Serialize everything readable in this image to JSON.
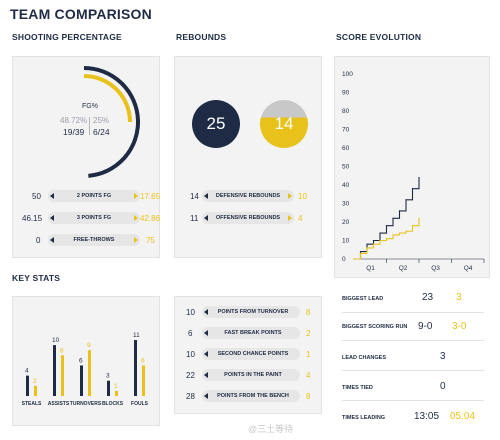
{
  "title": "TEAM COMPARISON",
  "sections": {
    "shooting": "SHOOTING PERCENTAGE",
    "rebounds": "REBOUNDS",
    "score": "SCORE EVOLUTION",
    "key": "KEY STATS"
  },
  "colors": {
    "navy": "#1f2b44",
    "gold": "#e8c21a",
    "grey": "#c8c8c8"
  },
  "shooting": {
    "fg_label": "FG%",
    "navy_pct": "48.72%",
    "gold_pct": "25%",
    "navy_made": "19/39",
    "gold_made": "6/24",
    "navy_fg_fraction": 0.4872,
    "gold_fg_fraction": 0.25,
    "rows": [
      {
        "label": "2 POINTS FG",
        "navy": "50",
        "gold": "17.65"
      },
      {
        "label": "3 POINTS FG",
        "navy": "46.15",
        "gold": "42.86"
      },
      {
        "label": "FREE-THROWS",
        "navy": "0",
        "gold": "75"
      }
    ]
  },
  "rebounds": {
    "navy_total": "25",
    "gold_total": "14",
    "rows": [
      {
        "label": "DEFENSIVE REBOUNDS",
        "navy": "14",
        "gold": "10"
      },
      {
        "label": "OFFENSIVE REBOUNDS",
        "navy": "11",
        "gold": "4"
      }
    ]
  },
  "chart_data": {
    "type": "line",
    "title": "SCORE EVOLUTION",
    "xlabel": "",
    "ylabel": "",
    "ylim": [
      0,
      100
    ],
    "yticks": [
      "100",
      "90",
      "80",
      "70",
      "60",
      "50",
      "40",
      "30",
      "20",
      "10",
      "0"
    ],
    "categories": [
      "Q1",
      "Q2",
      "Q3",
      "Q4"
    ],
    "series": [
      {
        "color": "#1f2b44",
        "x": [
          0,
          0.2,
          0.4,
          0.6,
          0.8,
          1.0,
          1.2,
          1.4,
          1.6,
          1.8,
          2.0
        ],
        "values": [
          0,
          4,
          8,
          10,
          14,
          18,
          22,
          26,
          32,
          38,
          44
        ]
      },
      {
        "color": "#e8c21a",
        "x": [
          0,
          0.2,
          0.4,
          0.6,
          0.8,
          1.0,
          1.2,
          1.4,
          1.6,
          1.8,
          2.0
        ],
        "values": [
          0,
          3,
          6,
          8,
          10,
          11,
          13,
          14,
          15,
          18,
          22
        ]
      }
    ]
  },
  "score_stats": [
    {
      "label": "BIGGEST LEAD",
      "navy": "23",
      "gold": "3"
    },
    {
      "label": "BIGGEST SCORING RUN",
      "navy": "9-0",
      "gold": "3-0"
    },
    {
      "label": "LEAD CHANGES",
      "both": "3"
    },
    {
      "label": "TIMES TIED",
      "both": "0"
    },
    {
      "label": "TIMES LEADING",
      "navy": "13:05",
      "gold": "05:04"
    }
  ],
  "key_stats": [
    {
      "label": "STEALS",
      "navy": "4",
      "gold": "2"
    },
    {
      "label": "ASSISTS",
      "navy": "10",
      "gold": "8"
    },
    {
      "label": "TURNOVERS",
      "navy": "6",
      "gold": "9"
    },
    {
      "label": "BLOCKS",
      "navy": "3",
      "gold": "1"
    },
    {
      "label": "FOULS",
      "navy": "11",
      "gold": "6"
    }
  ],
  "key_stats_max": 11,
  "points": [
    {
      "label": "POINTS FROM TURNOVER",
      "navy": "10",
      "gold": "8"
    },
    {
      "label": "FAST BREAK POINTS",
      "navy": "6",
      "gold": "2"
    },
    {
      "label": "SECOND CHANCE POINTS",
      "navy": "10",
      "gold": "1"
    },
    {
      "label": "POINTS IN THE PAINT",
      "navy": "22",
      "gold": "4"
    },
    {
      "label": "POINTS FROM THE BENCH",
      "navy": "28",
      "gold": "8"
    }
  ],
  "watermark": "@三土等待"
}
